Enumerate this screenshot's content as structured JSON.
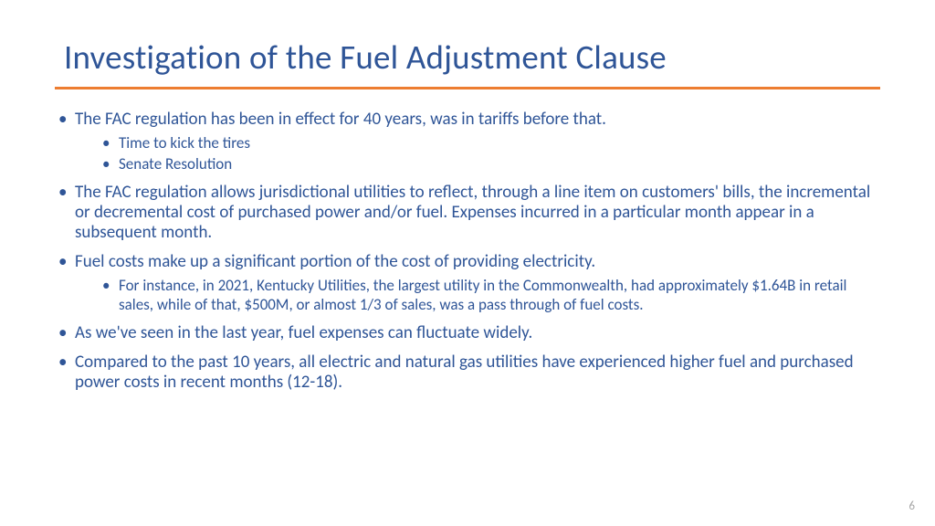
{
  "colors": {
    "title": "#2f5597",
    "body": "#2f5597",
    "rule": "#ed7d31",
    "pagenum": "#a6a6a6",
    "background": "#ffffff"
  },
  "title": "Investigation of the Fuel Adjustment Clause",
  "bullets": [
    {
      "text": "The FAC regulation has been in effect for 40 years, was in tariffs before that.",
      "sub": [
        "Time to kick the tires",
        "Senate Resolution"
      ]
    },
    {
      "text": "The FAC regulation allows jurisdictional utilities to reflect, through a line item on customers' bills, the incremental or decremental cost of purchased power and/or fuel. Expenses incurred in a particular month appear in a subsequent month."
    },
    {
      "text": "Fuel costs make up a significant portion of the cost of providing electricity.",
      "sub": [
        "For instance, in 2021, Kentucky Utilities, the largest utility in the Commonwealth, had approximately $1.64B in retail sales, while of that, $500M, or almost 1/3 of sales, was a pass through of fuel costs."
      ]
    },
    {
      "text": "As we've seen in the last year, fuel expenses can fluctuate widely."
    },
    {
      "text": "Compared to the past 10 years, all electric and natural gas utilities have experienced higher fuel and purchased power costs in recent months (12-18)."
    }
  ],
  "pageNumber": "6"
}
